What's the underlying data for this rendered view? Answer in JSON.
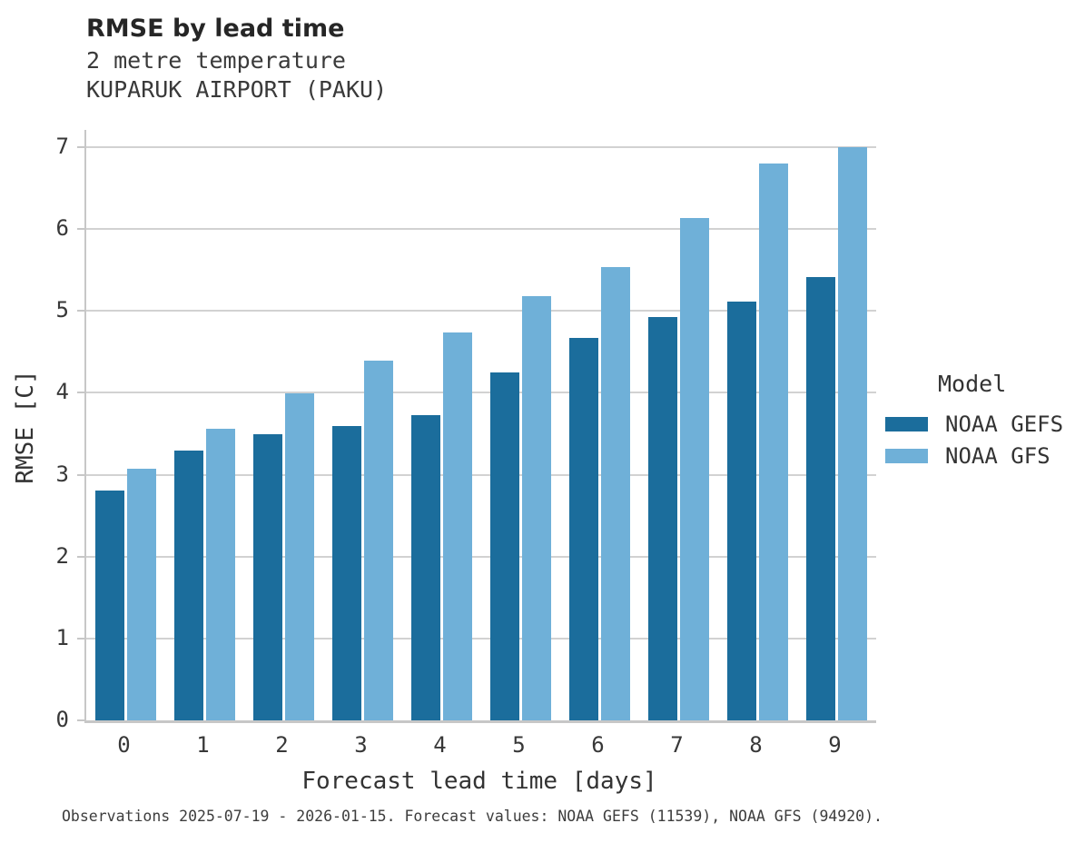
{
  "header": {
    "title": "RMSE by lead time",
    "subtitle_line1": "2 metre temperature",
    "subtitle_line2": "KUPARUK AIRPORT (PAKU)"
  },
  "chart_data": {
    "type": "bar",
    "title": "RMSE by lead time",
    "subtitle": "2 metre temperature — KUPARUK AIRPORT (PAKU)",
    "categories": [
      "0",
      "1",
      "2",
      "3",
      "4",
      "5",
      "6",
      "7",
      "8",
      "9"
    ],
    "series": [
      {
        "name": "NOAA GEFS",
        "color": "#1b6d9c",
        "values": [
          2.81,
          3.29,
          3.5,
          3.59,
          3.73,
          4.25,
          4.67,
          4.93,
          5.11,
          5.41
        ]
      },
      {
        "name": "NOAA GFS",
        "color": "#6fb0d8",
        "values": [
          3.07,
          3.56,
          3.99,
          4.39,
          4.74,
          5.18,
          5.54,
          6.13,
          6.8,
          7.0
        ]
      }
    ],
    "xlabel": "Forecast lead time [days]",
    "ylabel": "RMSE [C]",
    "ylim": [
      0,
      7
    ],
    "yticks": [
      0,
      1,
      2,
      3,
      4,
      5,
      6,
      7
    ],
    "grid": true,
    "legend_title": "Model",
    "legend_position": "right"
  },
  "footer": {
    "caption": "Observations 2025-07-19 - 2026-01-15. Forecast values: NOAA GEFS (11539), NOAA GFS (94920)."
  }
}
